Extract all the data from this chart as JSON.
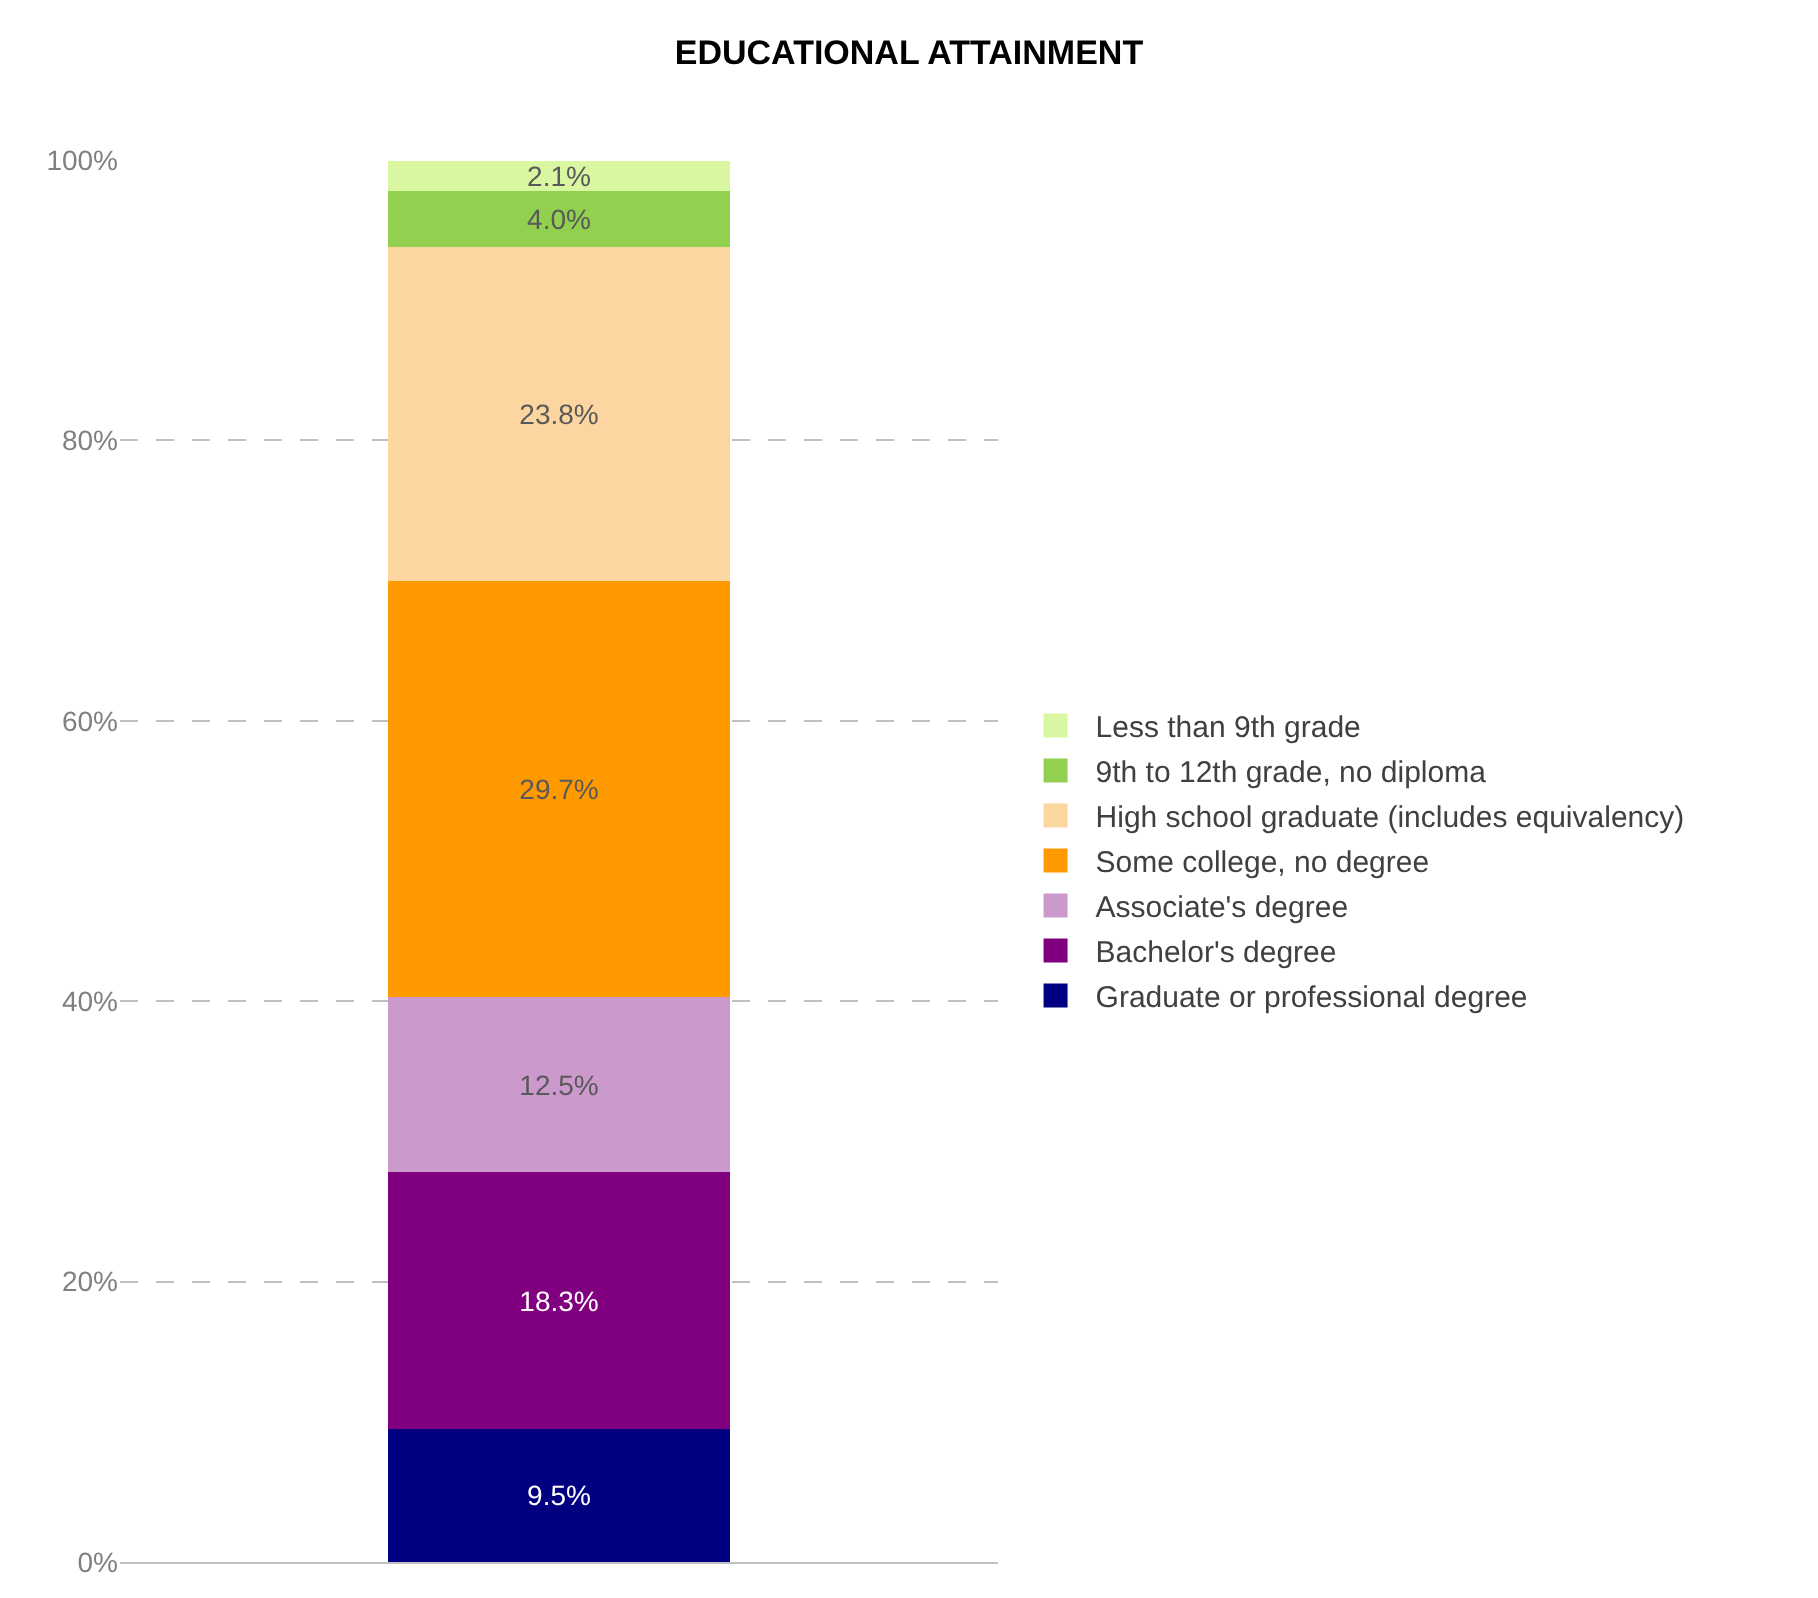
{
  "chart_data": {
    "type": "bar",
    "title": "EDUCATIONAL ATTAINMENT",
    "categories": [
      null
    ],
    "stacked": true,
    "series": [
      {
        "name": "Graduate or professional degree",
        "color": "#000080",
        "values": [
          9.5
        ],
        "value_labels": [
          "9.5%"
        ]
      },
      {
        "name": "Bachelor's degree",
        "color": "#800080",
        "values": [
          18.3
        ],
        "value_labels": [
          "18.3%"
        ]
      },
      {
        "name": "Associate's degree",
        "color": "#cc99cc",
        "values": [
          12.5
        ],
        "value_labels": [
          "12.5%"
        ]
      },
      {
        "name": "Some college, no degree",
        "color": "#ff9900",
        "values": [
          29.7
        ],
        "value_labels": [
          "29.7%"
        ]
      },
      {
        "name": "High school graduate (includes equivalency)",
        "color": "#fcd5a0",
        "values": [
          23.8
        ],
        "value_labels": [
          "23.8%"
        ]
      },
      {
        "name": "9th to 12th grade, no diploma",
        "color": "#92d050",
        "values": [
          4.0
        ],
        "value_labels": [
          "4.0%"
        ]
      },
      {
        "name": "Less than 9th grade",
        "color": "#d9f7a0",
        "values": [
          2.1
        ],
        "value_labels": [
          "2.1%"
        ]
      }
    ],
    "ylim": [
      0,
      100
    ],
    "yticks": [
      {
        "value": 0,
        "label": "0%"
      },
      {
        "value": 20,
        "label": "20%"
      },
      {
        "value": 40,
        "label": "40%"
      },
      {
        "value": 60,
        "label": "60%"
      },
      {
        "value": 80,
        "label": "80%"
      },
      {
        "value": 100,
        "label": "100%"
      }
    ],
    "grid": "y",
    "legend": "right"
  }
}
